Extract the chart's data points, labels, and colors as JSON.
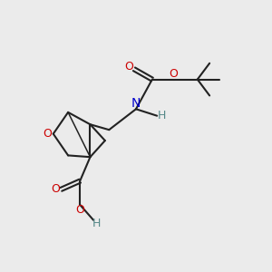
{
  "background_color": "#ebebeb",
  "figsize": [
    3.0,
    3.0
  ],
  "dpi": 100,
  "bond_color": "#222222",
  "atom_colors": {
    "O": "#cc0000",
    "N": "#0000cc",
    "H": "#558888",
    "C": "#222222"
  }
}
